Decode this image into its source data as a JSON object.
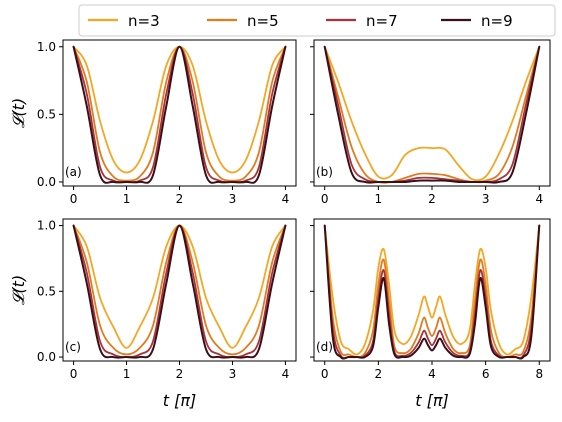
{
  "legend": {
    "placement": "top-center",
    "entries": [
      {
        "label": "n=3",
        "color": "#f5a623"
      },
      {
        "label": "n=5",
        "color": "#e07b1f"
      },
      {
        "label": "n=7",
        "color": "#a8323a"
      },
      {
        "label": "n=9",
        "color": "#3b0f17"
      }
    ]
  },
  "chart_data": [
    {
      "type": "line",
      "panel_label": "(a)",
      "xlabel": "",
      "ylabel": "𝓛(t)",
      "xlim": [
        -0.2,
        4.2
      ],
      "ylim": [
        -0.03,
        1.05
      ],
      "xticks": [
        0,
        1,
        2,
        3,
        4
      ],
      "yticks": [
        0.0,
        0.5,
        1.0
      ],
      "yticklabels": [
        "0.0",
        "0.5",
        "1.0"
      ],
      "grid": false,
      "series": [
        {
          "name": "n=3",
          "x": [
            0,
            0.25,
            0.5,
            0.75,
            1,
            1.25,
            1.5,
            1.75,
            2,
            2.25,
            2.5,
            2.75,
            3,
            3.25,
            3.5,
            3.75,
            4
          ],
          "y": [
            1.0,
            0.86,
            0.45,
            0.16,
            0.07,
            0.16,
            0.45,
            0.86,
            1.0,
            0.86,
            0.45,
            0.16,
            0.07,
            0.16,
            0.45,
            0.86,
            1.0
          ]
        },
        {
          "name": "n=5",
          "x": [
            0,
            0.25,
            0.5,
            0.75,
            1,
            1.25,
            1.5,
            1.75,
            2,
            2.25,
            2.5,
            2.75,
            3,
            3.25,
            3.5,
            3.75,
            4
          ],
          "y": [
            1.0,
            0.74,
            0.22,
            0.04,
            0.01,
            0.04,
            0.22,
            0.74,
            1.0,
            0.74,
            0.22,
            0.04,
            0.01,
            0.04,
            0.22,
            0.74,
            1.0
          ]
        },
        {
          "name": "n=7",
          "x": [
            0,
            0.25,
            0.5,
            0.75,
            1,
            1.25,
            1.5,
            1.75,
            2,
            2.25,
            2.5,
            2.75,
            3,
            3.25,
            3.5,
            3.75,
            4
          ],
          "y": [
            1.0,
            0.65,
            0.11,
            0.01,
            0.0,
            0.01,
            0.11,
            0.65,
            1.0,
            0.65,
            0.11,
            0.01,
            0.0,
            0.01,
            0.11,
            0.65,
            1.0
          ]
        },
        {
          "name": "n=9",
          "x": [
            0,
            0.25,
            0.5,
            0.75,
            1,
            1.25,
            1.5,
            1.75,
            2,
            2.25,
            2.5,
            2.75,
            3,
            3.25,
            3.5,
            3.75,
            4
          ],
          "y": [
            1.0,
            0.56,
            0.05,
            0.0,
            0.0,
            0.0,
            0.05,
            0.56,
            1.0,
            0.56,
            0.05,
            0.0,
            0.0,
            0.0,
            0.05,
            0.56,
            1.0
          ]
        }
      ]
    },
    {
      "type": "line",
      "panel_label": "(b)",
      "xlabel": "",
      "ylabel": "",
      "xlim": [
        -0.2,
        4.2
      ],
      "ylim": [
        -0.03,
        1.05
      ],
      "xticks": [
        0,
        1,
        2,
        3,
        4
      ],
      "yticks": [
        0.0,
        0.5,
        1.0
      ],
      "yticklabels": [],
      "grid": false,
      "series": [
        {
          "name": "n=3",
          "x": [
            0,
            0.25,
            0.5,
            0.75,
            1,
            1.25,
            1.5,
            1.75,
            2,
            2.25,
            2.5,
            2.75,
            3,
            3.25,
            3.5,
            3.75,
            4
          ],
          "y": [
            1.0,
            0.74,
            0.45,
            0.21,
            0.04,
            0.05,
            0.2,
            0.25,
            0.25,
            0.24,
            0.12,
            0.02,
            0.04,
            0.21,
            0.45,
            0.74,
            1.0
          ]
        },
        {
          "name": "n=5",
          "x": [
            0,
            0.25,
            0.5,
            0.75,
            1,
            1.25,
            1.5,
            1.75,
            2,
            2.25,
            2.5,
            2.75,
            3,
            3.25,
            3.5,
            3.75,
            4
          ],
          "y": [
            1.0,
            0.63,
            0.26,
            0.06,
            0.0,
            0.0,
            0.03,
            0.06,
            0.06,
            0.05,
            0.02,
            0.0,
            0.01,
            0.06,
            0.26,
            0.63,
            1.0
          ]
        },
        {
          "name": "n=7",
          "x": [
            0,
            0.25,
            0.5,
            0.75,
            1,
            1.25,
            1.5,
            1.75,
            2,
            2.25,
            2.5,
            2.75,
            3,
            3.25,
            3.5,
            3.75,
            4
          ],
          "y": [
            1.0,
            0.57,
            0.13,
            0.02,
            0.0,
            0.0,
            0.01,
            0.03,
            0.03,
            0.02,
            0.01,
            0.0,
            0.0,
            0.02,
            0.13,
            0.57,
            1.0
          ]
        },
        {
          "name": "n=9",
          "x": [
            0,
            0.25,
            0.5,
            0.75,
            1,
            1.25,
            1.5,
            1.75,
            2,
            2.25,
            2.5,
            2.75,
            3,
            3.25,
            3.5,
            3.75,
            4
          ],
          "y": [
            1.0,
            0.5,
            0.07,
            0.0,
            0.0,
            0.0,
            0.0,
            0.01,
            0.01,
            0.01,
            0.0,
            0.0,
            0.0,
            0.0,
            0.07,
            0.5,
            1.0
          ]
        }
      ]
    },
    {
      "type": "line",
      "panel_label": "(c)",
      "xlabel": "t [π]",
      "ylabel": "𝓛(t)",
      "xlim": [
        -0.2,
        4.2
      ],
      "ylim": [
        -0.03,
        1.05
      ],
      "xticks": [
        0,
        1,
        2,
        3,
        4
      ],
      "yticks": [
        0.0,
        0.5,
        1.0
      ],
      "yticklabels": [
        "0.0",
        "0.5",
        "1.0"
      ],
      "grid": false,
      "series": [
        {
          "name": "n=3",
          "x": [
            0,
            0.25,
            0.5,
            0.75,
            1,
            1.25,
            1.5,
            1.75,
            2,
            2.25,
            2.5,
            2.75,
            3,
            3.25,
            3.5,
            3.75,
            4
          ],
          "y": [
            1.0,
            0.84,
            0.45,
            0.23,
            0.07,
            0.23,
            0.45,
            0.84,
            1.0,
            0.84,
            0.45,
            0.23,
            0.07,
            0.23,
            0.45,
            0.84,
            1.0
          ]
        },
        {
          "name": "n=5",
          "x": [
            0,
            0.25,
            0.5,
            0.75,
            1,
            1.25,
            1.5,
            1.75,
            2,
            2.25,
            2.5,
            2.75,
            3,
            3.25,
            3.5,
            3.75,
            4
          ],
          "y": [
            1.0,
            0.72,
            0.24,
            0.07,
            0.02,
            0.07,
            0.24,
            0.72,
            1.0,
            0.72,
            0.24,
            0.07,
            0.02,
            0.07,
            0.24,
            0.72,
            1.0
          ]
        },
        {
          "name": "n=7",
          "x": [
            0,
            0.25,
            0.5,
            0.75,
            1,
            1.25,
            1.5,
            1.75,
            2,
            2.25,
            2.5,
            2.75,
            3,
            3.25,
            3.5,
            3.75,
            4
          ],
          "y": [
            1.0,
            0.64,
            0.12,
            0.02,
            0.0,
            0.02,
            0.12,
            0.64,
            1.0,
            0.64,
            0.12,
            0.02,
            0.0,
            0.02,
            0.12,
            0.64,
            1.0
          ]
        },
        {
          "name": "n=9",
          "x": [
            0,
            0.25,
            0.5,
            0.75,
            1,
            1.25,
            1.5,
            1.75,
            2,
            2.25,
            2.5,
            2.75,
            3,
            3.25,
            3.5,
            3.75,
            4
          ],
          "y": [
            1.0,
            0.56,
            0.06,
            0.0,
            0.0,
            0.0,
            0.06,
            0.56,
            1.0,
            0.56,
            0.06,
            0.0,
            0.0,
            0.0,
            0.06,
            0.56,
            1.0
          ]
        }
      ]
    },
    {
      "type": "line",
      "panel_label": "(d)",
      "xlabel": "t [π]",
      "ylabel": "",
      "xlim": [
        -0.4,
        8.4
      ],
      "ylim": [
        -0.03,
        1.05
      ],
      "xticks": [
        0,
        2,
        4,
        6,
        8
      ],
      "yticks": [
        0.0,
        0.5,
        1.0
      ],
      "yticklabels": [],
      "grid": false,
      "series": [
        {
          "name": "n=3",
          "x": [
            0,
            0.3,
            0.6,
            0.9,
            1.2,
            1.5,
            1.8,
            2.0,
            2.2,
            2.4,
            2.6,
            2.9,
            3.2,
            3.5,
            3.7,
            3.85,
            4.0,
            4.15,
            4.3,
            4.5,
            4.8,
            5.1,
            5.4,
            5.6,
            5.8,
            6.0,
            6.2,
            6.5,
            6.8,
            7.1,
            7.4,
            7.7,
            8.0
          ],
          "y": [
            1.0,
            0.45,
            0.12,
            0.06,
            0.02,
            0.1,
            0.35,
            0.68,
            0.82,
            0.55,
            0.2,
            0.1,
            0.15,
            0.32,
            0.46,
            0.38,
            0.3,
            0.38,
            0.46,
            0.32,
            0.15,
            0.1,
            0.2,
            0.55,
            0.82,
            0.68,
            0.35,
            0.1,
            0.02,
            0.06,
            0.12,
            0.45,
            1.0
          ]
        },
        {
          "name": "n=5",
          "x": [
            0,
            0.3,
            0.6,
            0.9,
            1.2,
            1.5,
            1.8,
            2.0,
            2.2,
            2.4,
            2.6,
            2.9,
            3.2,
            3.5,
            3.7,
            3.85,
            4.0,
            4.15,
            4.3,
            4.5,
            4.8,
            5.1,
            5.4,
            5.6,
            5.8,
            6.0,
            6.2,
            6.5,
            6.8,
            7.1,
            7.4,
            7.7,
            8.0
          ],
          "y": [
            1.0,
            0.3,
            0.04,
            0.02,
            0.0,
            0.03,
            0.2,
            0.55,
            0.74,
            0.42,
            0.08,
            0.03,
            0.06,
            0.18,
            0.3,
            0.22,
            0.16,
            0.22,
            0.3,
            0.18,
            0.06,
            0.03,
            0.08,
            0.42,
            0.74,
            0.55,
            0.2,
            0.03,
            0.0,
            0.02,
            0.04,
            0.3,
            1.0
          ]
        },
        {
          "name": "n=7",
          "x": [
            0,
            0.3,
            0.6,
            0.9,
            1.2,
            1.5,
            1.8,
            2.0,
            2.2,
            2.4,
            2.6,
            2.9,
            3.2,
            3.5,
            3.7,
            3.85,
            4.0,
            4.15,
            4.3,
            4.5,
            4.8,
            5.1,
            5.4,
            5.6,
            5.8,
            6.0,
            6.2,
            6.5,
            6.8,
            7.1,
            7.4,
            7.7,
            8.0
          ],
          "y": [
            1.0,
            0.22,
            0.01,
            0.0,
            0.0,
            0.01,
            0.12,
            0.45,
            0.66,
            0.32,
            0.04,
            0.01,
            0.03,
            0.11,
            0.2,
            0.14,
            0.09,
            0.14,
            0.2,
            0.11,
            0.03,
            0.01,
            0.04,
            0.32,
            0.66,
            0.45,
            0.12,
            0.01,
            0.0,
            0.0,
            0.01,
            0.22,
            1.0
          ]
        },
        {
          "name": "n=9",
          "x": [
            0,
            0.3,
            0.6,
            0.9,
            1.2,
            1.5,
            1.8,
            2.0,
            2.2,
            2.4,
            2.6,
            2.9,
            3.2,
            3.5,
            3.7,
            3.85,
            4.0,
            4.15,
            4.3,
            4.5,
            4.8,
            5.1,
            5.4,
            5.6,
            5.8,
            6.0,
            6.2,
            6.5,
            6.8,
            7.1,
            7.4,
            7.7,
            8.0
          ],
          "y": [
            1.0,
            0.15,
            0.0,
            0.0,
            0.0,
            0.0,
            0.08,
            0.38,
            0.6,
            0.25,
            0.02,
            0.0,
            0.01,
            0.07,
            0.14,
            0.09,
            0.05,
            0.09,
            0.14,
            0.07,
            0.01,
            0.0,
            0.02,
            0.25,
            0.6,
            0.38,
            0.08,
            0.0,
            0.0,
            0.0,
            0.0,
            0.15,
            1.0
          ]
        }
      ]
    }
  ]
}
